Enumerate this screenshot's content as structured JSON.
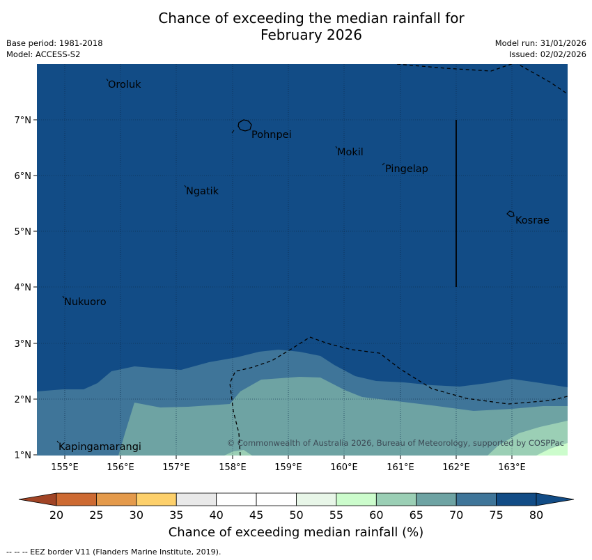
{
  "title_line1": "Chance of exceeding the median rainfall for",
  "title_line2": "February 2026",
  "meta": {
    "base_period": "Base period: 1981-2018",
    "model": "Model: ACCESS-S2",
    "model_run": "Model run: 31/01/2026",
    "issued": "Issued: 02/02/2026"
  },
  "map": {
    "lon_ticks": [
      "155°E",
      "156°E",
      "157°E",
      "158°E",
      "159°E",
      "160°E",
      "161°E",
      "162°E",
      "163°E"
    ],
    "lat_ticks": [
      "7°N",
      "6°N",
      "5°N",
      "4°N",
      "3°N",
      "2°N",
      "1°N"
    ],
    "places": [
      "Oroluk",
      "Pohnpei",
      "Mokil",
      "Pingelap",
      "Ngatik",
      "Kosrae",
      "Nukuoro",
      "Kapingamarangi"
    ],
    "copyright": "© Commonwealth of Australia 2026, Bureau of Meteorology, supported by COSPPac"
  },
  "colorbar": {
    "ticks": [
      "20",
      "25",
      "30",
      "35",
      "40",
      "45",
      "50",
      "55",
      "60",
      "65",
      "70",
      "75",
      "80"
    ],
    "colors": [
      "#b5502b",
      "#cd6a32",
      "#e49a4b",
      "#fdd06b",
      "#e9e9e9",
      "#ffffff",
      "#ffffff",
      "#e8f6e8",
      "#ccfccc",
      "#9bcfb5",
      "#6ea3a3",
      "#3f7599",
      "#124c86"
    ],
    "under_color": "#a14425",
    "over_color": "#124c86",
    "label": "Chance of exceeding median rainfall (%)"
  },
  "footer": "--  --  -- EEZ border V11 (Flanders Marine Institute, 2019)."
}
